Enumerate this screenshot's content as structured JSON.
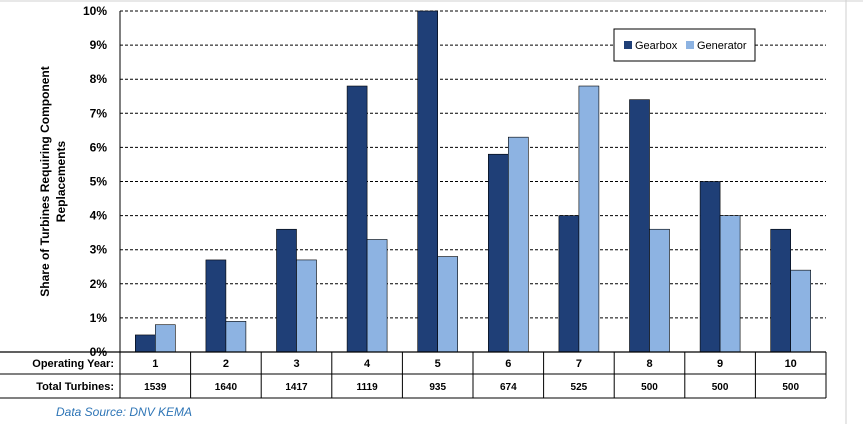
{
  "chart_data": {
    "type": "bar",
    "ylabel_lines": [
      "Share of Turbines Requiring Component",
      "Replacements"
    ],
    "categories": [
      "1",
      "2",
      "3",
      "4",
      "5",
      "6",
      "7",
      "8",
      "9",
      "10"
    ],
    "series": [
      {
        "name": "Gearbox",
        "color": "#1f3f77",
        "values": [
          0.5,
          2.7,
          3.6,
          7.8,
          10.0,
          5.8,
          4.0,
          7.4,
          5.0,
          3.6
        ]
      },
      {
        "name": "Generator",
        "color": "#8db3e2",
        "values": [
          0.8,
          0.9,
          2.7,
          3.3,
          2.8,
          6.3,
          7.8,
          3.6,
          4.0,
          2.4
        ]
      }
    ],
    "ylim": [
      0,
      10
    ],
    "yticks": [
      "0%",
      "1%",
      "2%",
      "3%",
      "4%",
      "5%",
      "6%",
      "7%",
      "8%",
      "9%",
      "10%"
    ],
    "grid": true,
    "legend_position": "top-right",
    "table": {
      "rows": [
        {
          "label": "Operating Year:",
          "values": [
            "1",
            "2",
            "3",
            "4",
            "5",
            "6",
            "7",
            "8",
            "9",
            "10"
          ]
        },
        {
          "label": "Total Turbines:",
          "values": [
            "1539",
            "1640",
            "1417",
            "1119",
            "935",
            "674",
            "525",
            "500",
            "500",
            "500"
          ]
        }
      ]
    }
  },
  "footer": {
    "source": "Data Source: DNV KEMA"
  }
}
